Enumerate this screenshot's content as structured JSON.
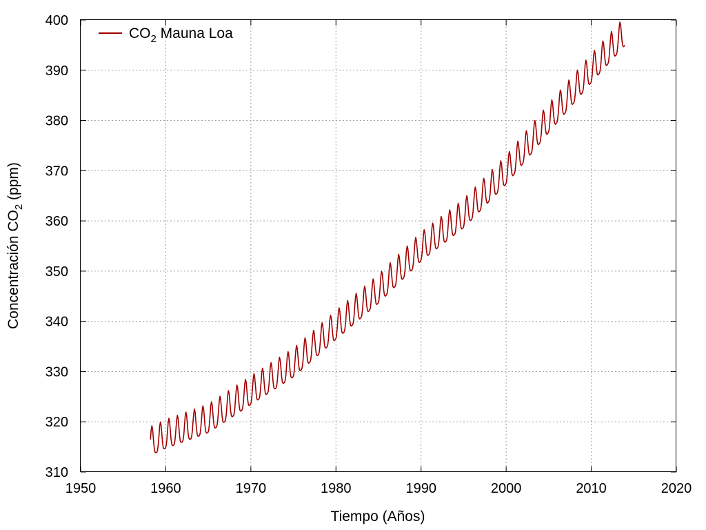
{
  "chart_data": {
    "type": "line",
    "xlabel": "Tiempo (Años)",
    "ylabel_main": "Concentración CO",
    "ylabel_sub": "2",
    "ylabel_tail": " (ppm)",
    "xlim": [
      1950,
      2020
    ],
    "ylim": [
      310,
      400
    ],
    "xticks": [
      1950,
      1960,
      1970,
      1980,
      1990,
      2000,
      2010,
      2020
    ],
    "yticks": [
      310,
      320,
      330,
      340,
      350,
      360,
      370,
      380,
      390,
      400
    ],
    "grid": true,
    "legend_position": "top-left",
    "series": [
      {
        "name_main": "CO",
        "name_sub": "2",
        "name_tail": " Mauna Loa",
        "color": "#a00000",
        "x_start": 1958.2,
        "x_end": 2014.0,
        "samples_per_year": 12,
        "seasonal_amplitude_ppm": 3.0,
        "trend_points": [
          [
            1958.2,
            315.5
          ],
          [
            1960,
            316.9
          ],
          [
            1965,
            320.0
          ],
          [
            1970,
            325.6
          ],
          [
            1975,
            331.1
          ],
          [
            1980,
            338.6
          ],
          [
            1985,
            345.8
          ],
          [
            1990,
            354.2
          ],
          [
            1995,
            360.8
          ],
          [
            2000,
            369.5
          ],
          [
            2005,
            379.8
          ],
          [
            2010,
            389.7
          ],
          [
            2014,
            397.2
          ]
        ]
      }
    ]
  }
}
